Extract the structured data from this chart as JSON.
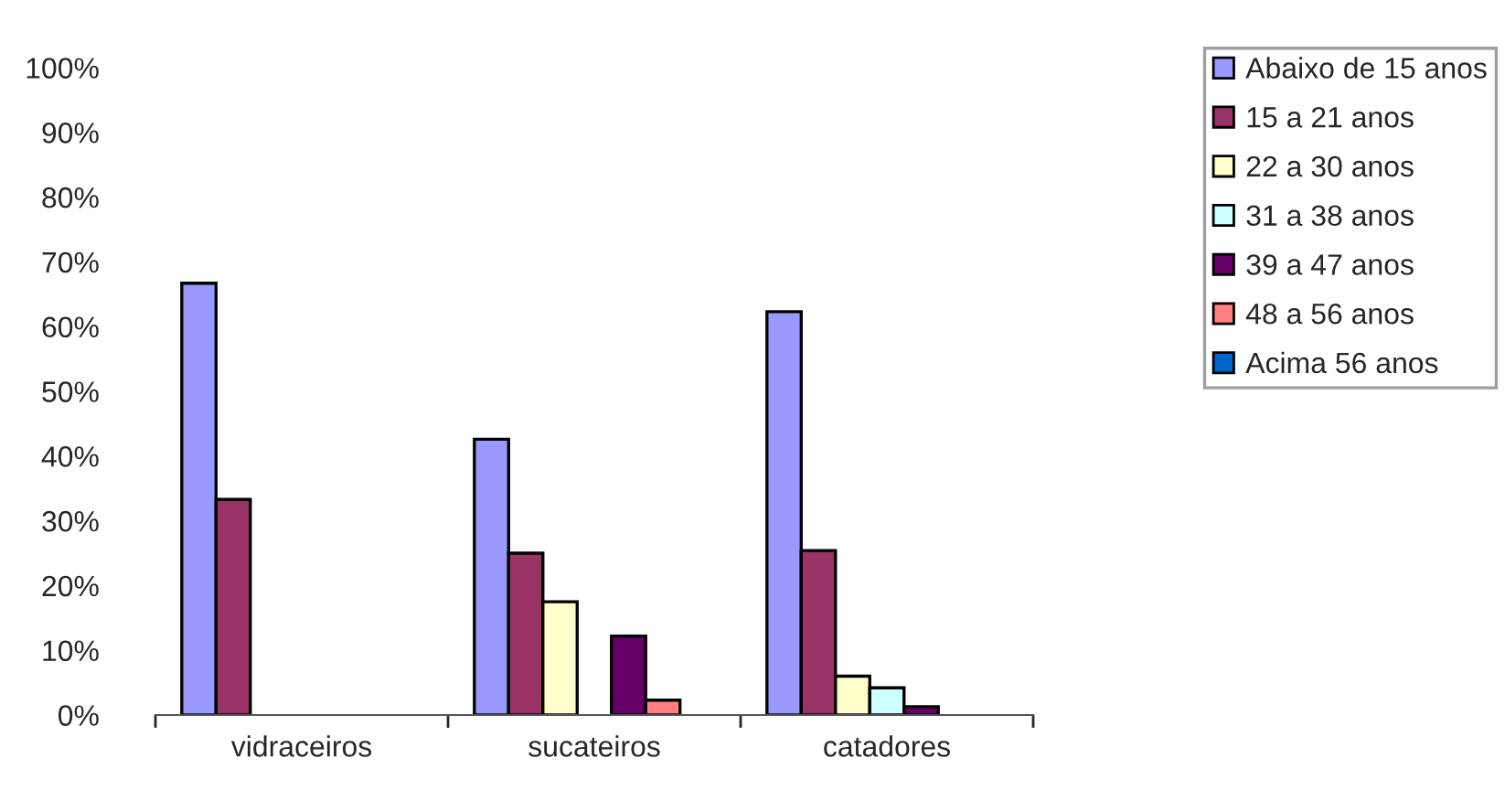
{
  "chart_data": {
    "type": "bar",
    "categories": [
      "vidraceiros",
      "sucateiros",
      "catadores"
    ],
    "series": [
      {
        "name": "Abaixo de 15 anos",
        "color": "#9999ff",
        "values": [
          66.7,
          42.6,
          62.3
        ]
      },
      {
        "name": "15 a 21 anos",
        "color": "#993366",
        "values": [
          33.3,
          25.0,
          25.4
        ]
      },
      {
        "name": "22 a 30 anos",
        "color": "#ffffcc",
        "values": [
          null,
          17.5,
          6.0
        ]
      },
      {
        "name": "31 a 38 anos",
        "color": "#ccffff",
        "values": [
          null,
          null,
          4.2
        ]
      },
      {
        "name": "39 a 47 anos",
        "color": "#660066",
        "values": [
          null,
          12.2,
          1.3
        ]
      },
      {
        "name": "48 a 56 anos",
        "color": "#ff8080",
        "values": [
          null,
          2.3,
          null
        ]
      },
      {
        "name": "Acima 56 anos",
        "color": "#0066cc",
        "values": [
          null,
          null,
          null
        ]
      }
    ],
    "ylim": [
      0,
      100
    ],
    "yticks": [
      {
        "value": 0,
        "label": "0%"
      },
      {
        "value": 10,
        "label": "10%"
      },
      {
        "value": 20,
        "label": "20%"
      },
      {
        "value": 30,
        "label": "30%"
      },
      {
        "value": 40,
        "label": "40%"
      },
      {
        "value": 50,
        "label": "50%"
      },
      {
        "value": 60,
        "label": "60%"
      },
      {
        "value": 70,
        "label": "70%"
      },
      {
        "value": 80,
        "label": "80%"
      },
      {
        "value": 90,
        "label": "90%"
      },
      {
        "value": 100,
        "label": "100%"
      }
    ],
    "grid": false,
    "legend": "top right"
  }
}
